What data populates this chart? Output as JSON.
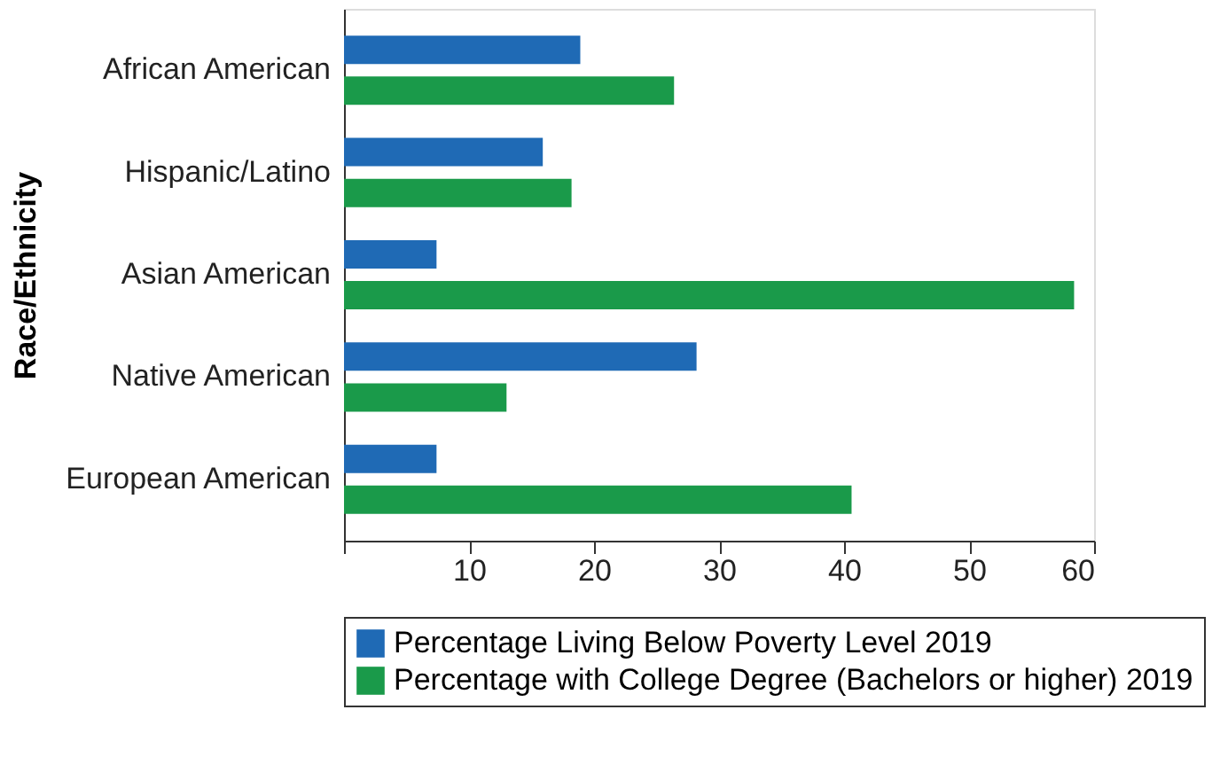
{
  "chart_data": {
    "type": "bar",
    "orientation": "horizontal",
    "ylabel": "Race/Ethnicity",
    "categories": [
      "African American",
      "Hispanic/Latino",
      "Asian American",
      "Native American",
      "European American"
    ],
    "series": [
      {
        "name": "Percentage Living Below Poverty Level 2019",
        "color": "#1f6ab5",
        "values": [
          18.9,
          15.9,
          7.4,
          28.2,
          7.4
        ]
      },
      {
        "name": "Percentage with College Degree (Bachelors or higher) 2019",
        "color": "#1a9a4a",
        "values": [
          26.4,
          18.2,
          58.4,
          13.0,
          40.6
        ]
      }
    ],
    "xlim": [
      0,
      60
    ],
    "xticks": [
      {
        "value": 0,
        "label": null
      },
      10,
      20,
      30,
      40,
      50,
      60
    ],
    "grid": false,
    "legend": "bottom"
  }
}
